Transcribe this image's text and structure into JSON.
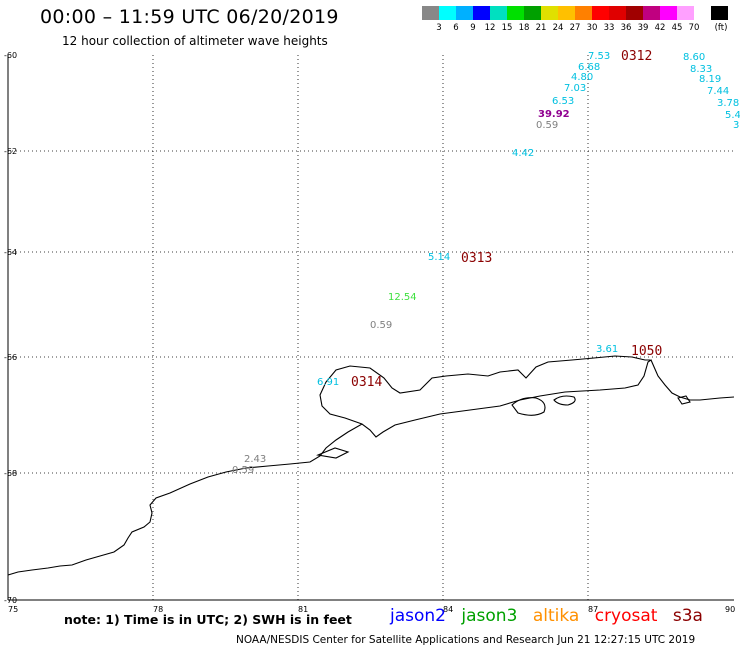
{
  "header": {
    "title": "00:00 – 11:59 UTC 06/20/2019",
    "subtitle": "12 hour collection of altimeter wave heights"
  },
  "legend": {
    "colors": [
      "#888888",
      "#00ffff",
      "#00b0ff",
      "#0000ff",
      "#00e0c0",
      "#00e000",
      "#00a000",
      "#e0e000",
      "#ffc000",
      "#ff8000",
      "#ff0000",
      "#e00000",
      "#a00000",
      "#c00080",
      "#ff00ff",
      "#ffa0ff",
      "#ffffff",
      "#000000"
    ],
    "labels": [
      "3",
      "6",
      "9",
      "12",
      "15",
      "18",
      "21",
      "24",
      "27",
      "30",
      "33",
      "36",
      "39",
      "42",
      "45",
      "70",
      "(ft)"
    ]
  },
  "axes": {
    "x_ticks": [
      "75",
      "78",
      "81",
      "84",
      "87",
      "90"
    ],
    "y_ticks": [
      "-60",
      "-62",
      "-64",
      "-66",
      "-68",
      "-70"
    ]
  },
  "wave_labels": [
    {
      "text": "7.53",
      "color": "#00c0e0"
    },
    {
      "text": "6.68",
      "color": "#00c0e0"
    },
    {
      "text": "4.80",
      "color": "#00c0e0"
    },
    {
      "text": "7.03",
      "color": "#00c0e0"
    },
    {
      "text": "6.53",
      "color": "#00c0e0"
    },
    {
      "text": "39.92",
      "color": "#900090"
    },
    {
      "text": "0.59",
      "color": "#808080"
    },
    {
      "text": "4.42",
      "color": "#00c0e0"
    },
    {
      "text": "8.60",
      "color": "#00c0e0"
    },
    {
      "text": "8.33",
      "color": "#00c0e0"
    },
    {
      "text": "8.19",
      "color": "#00c0e0"
    },
    {
      "text": "7.44",
      "color": "#00c0e0"
    },
    {
      "text": "3.78",
      "color": "#00c0e0"
    },
    {
      "text": "5.4",
      "color": "#00c0e0"
    },
    {
      "text": "3",
      "color": "#00c0e0"
    },
    {
      "text": "5.14",
      "color": "#00c0e0"
    },
    {
      "text": "12.54",
      "color": "#40e040"
    },
    {
      "text": "0.59",
      "color": "#808080"
    },
    {
      "text": "3.61",
      "color": "#00c0e0"
    },
    {
      "text": "6.91",
      "color": "#00c0e0"
    },
    {
      "text": "2.43",
      "color": "#808080"
    },
    {
      "text": "0.59",
      "color": "#808080"
    }
  ],
  "pass_labels": [
    {
      "text": "0312",
      "color": "#8b0000"
    },
    {
      "text": "0313",
      "color": "#8b0000"
    },
    {
      "text": "0314",
      "color": "#8b0000"
    },
    {
      "text": "1050",
      "color": "#ff9000"
    }
  ],
  "note": "note: 1) Time is in UTC; 2) SWH is in feet",
  "satellites": [
    {
      "name": "jason2",
      "color": "#0000ff"
    },
    {
      "name": "jason3",
      "color": "#00a000"
    },
    {
      "name": "altika",
      "color": "#ff9000"
    },
    {
      "name": "cryosat",
      "color": "#ff0000"
    },
    {
      "name": "s3a",
      "color": "#8b0000"
    }
  ],
  "footer": "NOAA/NESDIS Center for Satellite Applications and Research    Jun 21 12:27:15 UTC 2019"
}
